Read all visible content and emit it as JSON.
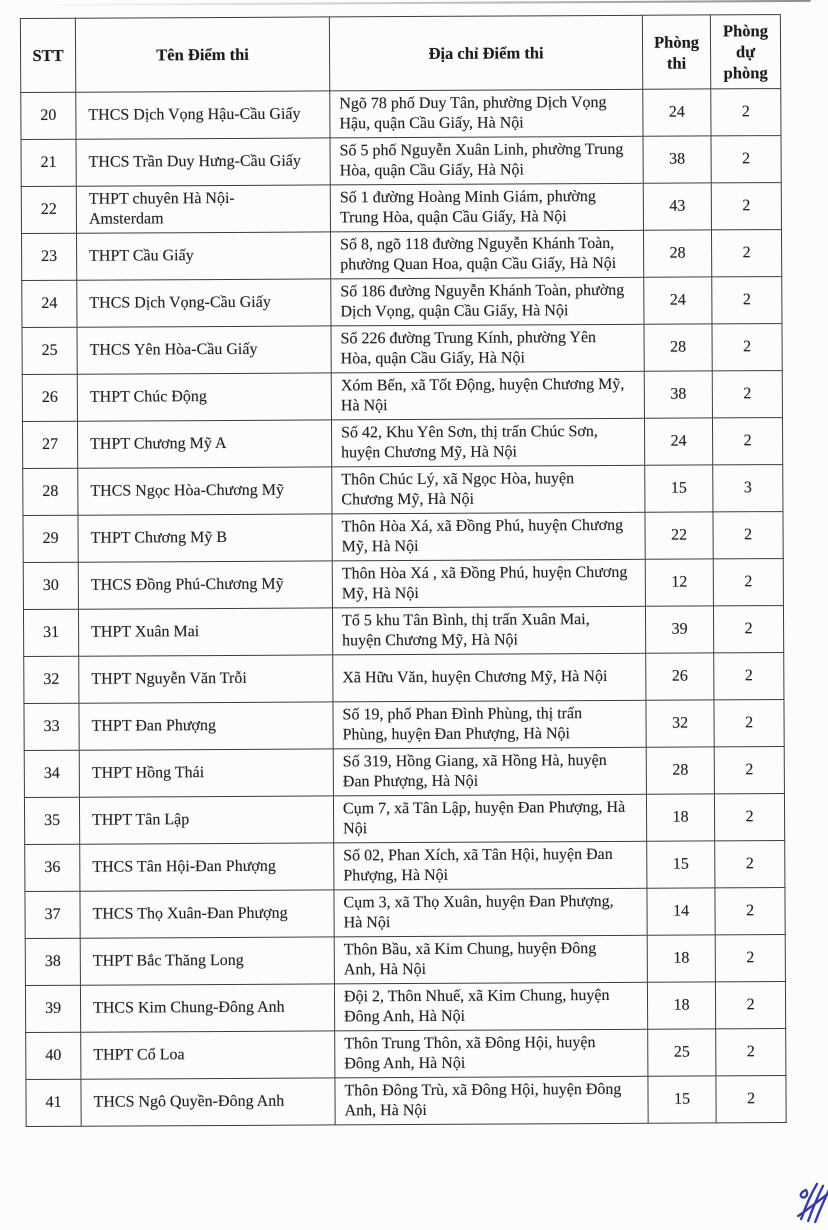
{
  "table": {
    "headers": {
      "stt": "STT",
      "name": "Tên Điểm thi",
      "address": "Địa chỉ Điểm thi",
      "rooms": "Phòng thi",
      "backup": "Phòng dự phòng"
    },
    "rows": [
      {
        "stt": "20",
        "name": "THCS Dịch Vọng Hậu-Cầu Giấy",
        "address": "Ngõ 78 phố Duy Tân, phường Dịch Vọng Hậu, quận Cầu Giấy, Hà Nội",
        "rooms": "24",
        "backup": "2"
      },
      {
        "stt": "21",
        "name": "THCS Trần Duy Hưng-Cầu Giấy",
        "address": "Số 5 phố Nguyễn Xuân Linh, phường Trung Hòa, quận Cầu Giấy, Hà Nội",
        "rooms": "38",
        "backup": "2"
      },
      {
        "stt": "22",
        "name": "THPT chuyên Hà Nội-Amsterdam",
        "address": "Số 1 đường Hoàng Minh Giám, phường Trung Hòa, quận Cầu Giấy, Hà Nội",
        "rooms": "43",
        "backup": "2"
      },
      {
        "stt": "23",
        "name": "THPT Cầu Giấy",
        "address": "Số 8, ngõ 118 đường Nguyễn Khánh Toàn, phường Quan Hoa, quận Cầu Giấy, Hà Nội",
        "rooms": "28",
        "backup": "2"
      },
      {
        "stt": "24",
        "name": "THCS Dịch Vọng-Cầu Giấy",
        "address": "Số 186 đường Nguyễn Khánh Toàn, phường Dịch Vọng, quận Cầu Giấy, Hà Nội",
        "rooms": "24",
        "backup": "2"
      },
      {
        "stt": "25",
        "name": "THCS Yên Hòa-Cầu Giấy",
        "address": "Số 226 đường Trung Kính, phường Yên Hòa, quận Cầu Giấy, Hà Nội",
        "rooms": "28",
        "backup": "2"
      },
      {
        "stt": "26",
        "name": "THPT Chúc Động",
        "address": "Xóm Bến, xã Tốt Động, huyện Chương Mỹ, Hà Nội",
        "rooms": "38",
        "backup": "2"
      },
      {
        "stt": "27",
        "name": "THPT Chương Mỹ A",
        "address": "Số 42, Khu Yên Sơn, thị trấn Chúc Sơn, huyện Chương Mỹ, Hà Nội",
        "rooms": "24",
        "backup": "2"
      },
      {
        "stt": "28",
        "name": "THCS Ngọc Hòa-Chương Mỹ",
        "address": "Thôn Chúc Lý, xã Ngọc Hòa, huyện Chương Mỹ, Hà Nội",
        "rooms": "15",
        "backup": "3"
      },
      {
        "stt": "29",
        "name": "THPT Chương Mỹ B",
        "address": "Thôn Hòa Xá, xã Đồng Phú, huyện Chương Mỹ, Hà Nội",
        "rooms": "22",
        "backup": "2"
      },
      {
        "stt": "30",
        "name": "THCS Đồng Phú-Chương Mỹ",
        "address": "Thôn Hòa Xá , xã Đồng Phú, huyện Chương Mỹ, Hà Nội",
        "rooms": "12",
        "backup": "2"
      },
      {
        "stt": "31",
        "name": "THPT Xuân Mai",
        "address": "Tổ 5 khu Tân Bình, thị trấn Xuân Mai, huyện Chương Mỹ, Hà Nội",
        "rooms": "39",
        "backup": "2"
      },
      {
        "stt": "32",
        "name": "THPT Nguyễn Văn Trỗi",
        "address": "Xã Hữu Văn, huyện Chương Mỹ, Hà Nội",
        "rooms": "26",
        "backup": "2"
      },
      {
        "stt": "33",
        "name": "THPT Đan Phượng",
        "address": "Số 19, phố Phan Đình Phùng, thị trấn Phùng, huyện Đan Phượng, Hà Nội",
        "rooms": "32",
        "backup": "2"
      },
      {
        "stt": "34",
        "name": "THPT Hồng Thái",
        "address": "Số 319, Hồng Giang, xã Hồng Hà, huyện Đan Phượng, Hà Nội",
        "rooms": "28",
        "backup": "2"
      },
      {
        "stt": "35",
        "name": "THPT Tân Lập",
        "address": "Cụm 7, xã Tân Lập, huyện Đan Phượng, Hà Nội",
        "rooms": "18",
        "backup": "2"
      },
      {
        "stt": "36",
        "name": "THCS Tân Hội-Đan Phượng",
        "address": "Số 02, Phan Xích, xã Tân Hội, huyện Đan Phượng, Hà Nội",
        "rooms": "15",
        "backup": "2"
      },
      {
        "stt": "37",
        "name": "THCS Thọ Xuân-Đan Phượng",
        "address": "Cụm 3, xã Thọ Xuân, huyện Đan Phượng, Hà Nội",
        "rooms": "14",
        "backup": "2"
      },
      {
        "stt": "38",
        "name": "THPT Bắc Thăng Long",
        "address": "Thôn Bầu, xã Kim Chung, huyện Đông Anh, Hà Nội",
        "rooms": "18",
        "backup": "2"
      },
      {
        "stt": "39",
        "name": "THCS Kim Chung-Đông Anh",
        "address": "Đội 2, Thôn Nhuế, xã Kim Chung, huyện Đông Anh, Hà Nội",
        "rooms": "18",
        "backup": "2"
      },
      {
        "stt": "40",
        "name": "THPT Cổ Loa",
        "address": "Thôn Trung Thôn, xã Đông Hội, huyện Đông Anh, Hà Nội",
        "rooms": "25",
        "backup": "2"
      },
      {
        "stt": "41",
        "name": "THCS Ngô Quyền-Đông Anh",
        "address": "Thôn Đông Trù, xã Đông Hội, huyện Đông Anh, Hà Nội",
        "rooms": "15",
        "backup": "2"
      }
    ]
  },
  "signature": {
    "ink_color": "#383cab"
  }
}
